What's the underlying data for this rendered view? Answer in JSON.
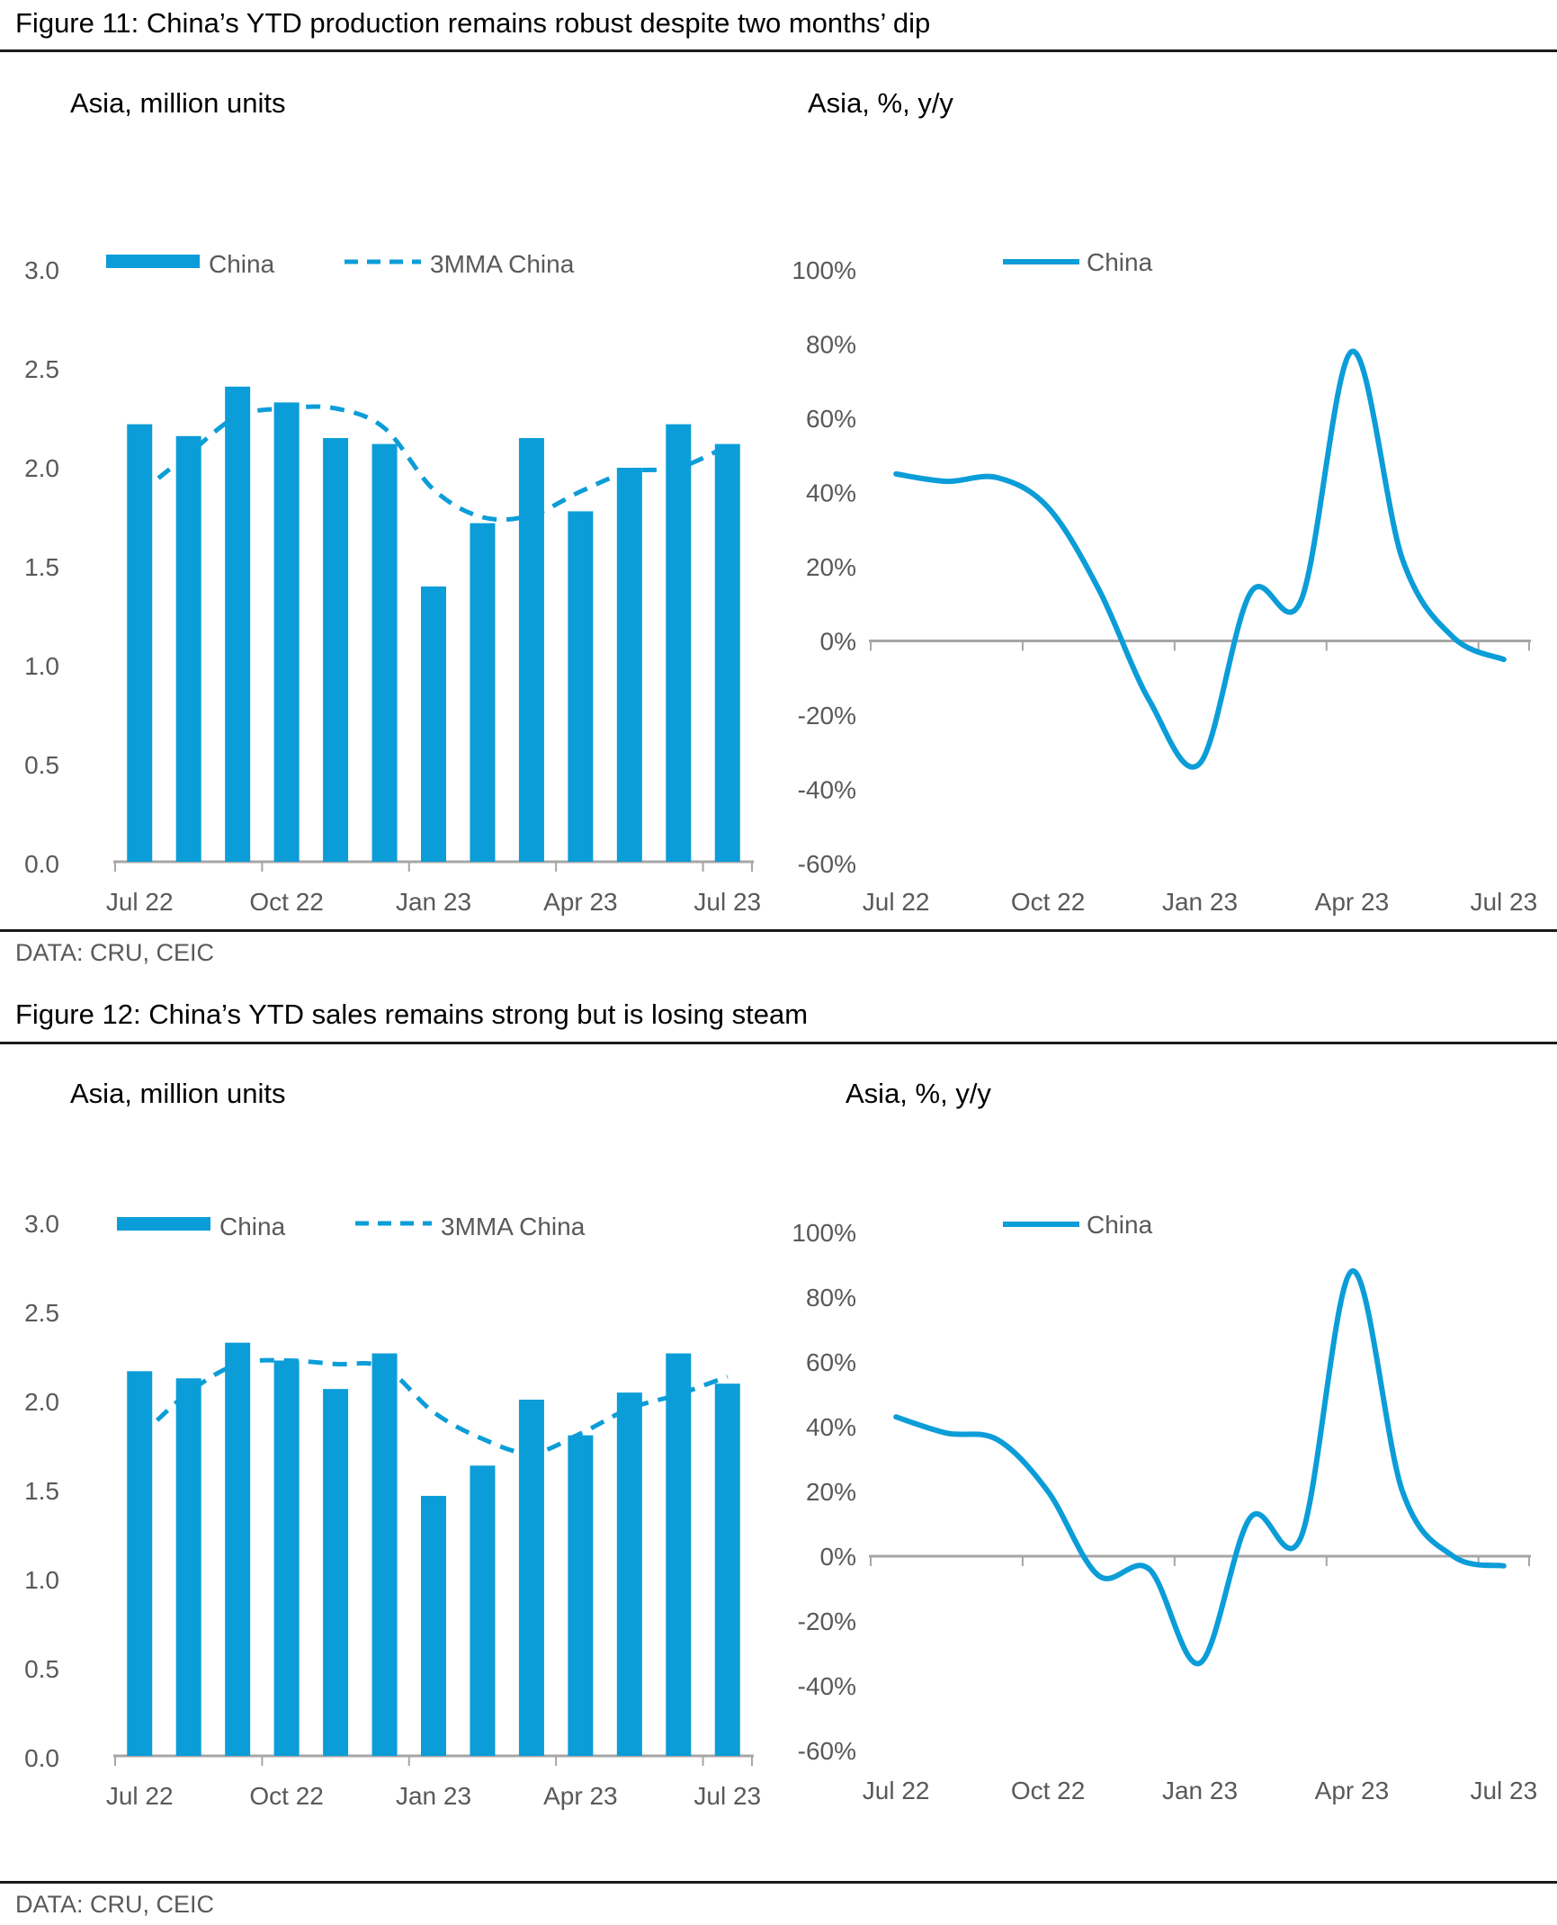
{
  "colors": {
    "accent_blue": "#0b9dd8",
    "axis_gray": "#a6a6a6",
    "label_gray": "#595959",
    "rule_black": "#1a1a1a"
  },
  "figure11": {
    "title": "Figure 11: China’s YTD production remains robust despite two months’ dip",
    "subtitle_left": "Asia, million units",
    "subtitle_right": "Asia, %, y/y",
    "source": "DATA: CRU, CEIC"
  },
  "figure12": {
    "title": "Figure 12: China’s YTD sales remains strong but is losing steam",
    "subtitle_left": "Asia, million units",
    "subtitle_right": "Asia, %, y/y",
    "source": "DATA: CRU, CEIC"
  },
  "chart_data": [
    {
      "id": "fig11-left",
      "type": "bar",
      "title": "Asia, million units",
      "categories": [
        "Jul 22",
        "Aug 22",
        "Sep 22",
        "Oct 22",
        "Nov 22",
        "Dec 22",
        "Jan 23",
        "Feb 23",
        "Mar 23",
        "Apr 23",
        "May 23",
        "Jun 23",
        "Jul 23"
      ],
      "x_tick_labels": [
        "Jul 22",
        "Oct 22",
        "Jan 23",
        "Apr 23",
        "Jul 23"
      ],
      "series": [
        {
          "name": "China",
          "type": "bar",
          "values": [
            2.22,
            2.16,
            2.41,
            2.33,
            2.15,
            2.12,
            1.4,
            1.72,
            2.15,
            1.78,
            2.0,
            2.22,
            2.12
          ]
        },
        {
          "name": "3MMA China",
          "type": "dashed-line",
          "values": [
            1.87,
            2.07,
            2.26,
            2.3,
            2.3,
            2.2,
            1.89,
            1.75,
            1.76,
            1.88,
            1.98,
            2.0,
            2.11
          ]
        }
      ],
      "ylim": [
        0,
        3
      ],
      "ytick_step": 0.5,
      "ytick_labels": [
        "3.0",
        "2.5",
        "2.0",
        "1.5",
        "1.0",
        "0.5",
        "0.0"
      ],
      "grid": false,
      "legend_position": "top"
    },
    {
      "id": "fig11-right",
      "type": "line",
      "title": "Asia, %, y/y",
      "categories": [
        "Jul 22",
        "Aug 22",
        "Sep 22",
        "Oct 22",
        "Nov 22",
        "Dec 22",
        "Jan 23",
        "Feb 23",
        "Mar 23",
        "Apr 23",
        "May 23",
        "Jun 23",
        "Jul 23"
      ],
      "x_tick_labels": [
        "Jul 22",
        "Oct 22",
        "Jan 23",
        "Apr 23",
        "Jul 23"
      ],
      "series": [
        {
          "name": "China",
          "type": "line",
          "values": [
            45,
            43,
            44,
            36,
            14,
            -16,
            -33,
            13,
            11,
            78,
            22,
            1,
            -5
          ]
        }
      ],
      "ylim": [
        -60,
        100
      ],
      "ytick_step": 20,
      "ytick_labels": [
        "100%",
        "80%",
        "60%",
        "40%",
        "20%",
        "0%",
        "-20%",
        "-40%",
        "-60%"
      ],
      "grid": false,
      "legend_position": "top"
    },
    {
      "id": "fig12-left",
      "type": "bar",
      "title": "Asia, million units",
      "categories": [
        "Jul 22",
        "Aug 22",
        "Sep 22",
        "Oct 22",
        "Nov 22",
        "Dec 22",
        "Jan 23",
        "Feb 23",
        "Mar 23",
        "Apr 23",
        "May 23",
        "Jun 23",
        "Jul 23"
      ],
      "x_tick_labels": [
        "Jul 22",
        "Oct 22",
        "Jan 23",
        "Apr 23",
        "Jul 23"
      ],
      "series": [
        {
          "name": "China",
          "type": "bar",
          "values": [
            2.17,
            2.13,
            2.33,
            2.23,
            2.07,
            2.27,
            1.47,
            1.64,
            2.01,
            1.81,
            2.05,
            2.27,
            2.1
          ]
        },
        {
          "name": "3MMA China",
          "type": "dashed-line",
          "values": [
            1.8,
            2.05,
            2.21,
            2.23,
            2.21,
            2.19,
            1.94,
            1.79,
            1.71,
            1.82,
            1.96,
            2.04,
            2.14
          ]
        }
      ],
      "ylim": [
        0,
        3
      ],
      "ytick_step": 0.5,
      "ytick_labels": [
        "3.0",
        "2.5",
        "2.0",
        "1.5",
        "1.0",
        "0.5",
        "0.0"
      ],
      "grid": false,
      "legend_position": "top"
    },
    {
      "id": "fig12-right",
      "type": "line",
      "title": "Asia, %, y/y",
      "categories": [
        "Jul 22",
        "Aug 22",
        "Sep 22",
        "Oct 22",
        "Nov 22",
        "Dec 22",
        "Jan 23",
        "Feb 23",
        "Mar 23",
        "Apr 23",
        "May 23",
        "Jun 23",
        "Jul 23"
      ],
      "x_tick_labels": [
        "Jul 22",
        "Oct 22",
        "Jan 23",
        "Apr 23",
        "Jul 23"
      ],
      "series": [
        {
          "name": "China",
          "type": "line",
          "values": [
            43,
            38,
            36,
            20,
            -6,
            -4,
            -33,
            12,
            6,
            88,
            20,
            0,
            -3
          ]
        }
      ],
      "ylim": [
        -60,
        100
      ],
      "ytick_step": 20,
      "ytick_labels": [
        "100%",
        "80%",
        "60%",
        "40%",
        "20%",
        "0%",
        "-20%",
        "-40%",
        "-60%"
      ],
      "grid": false,
      "legend_position": "top"
    }
  ]
}
